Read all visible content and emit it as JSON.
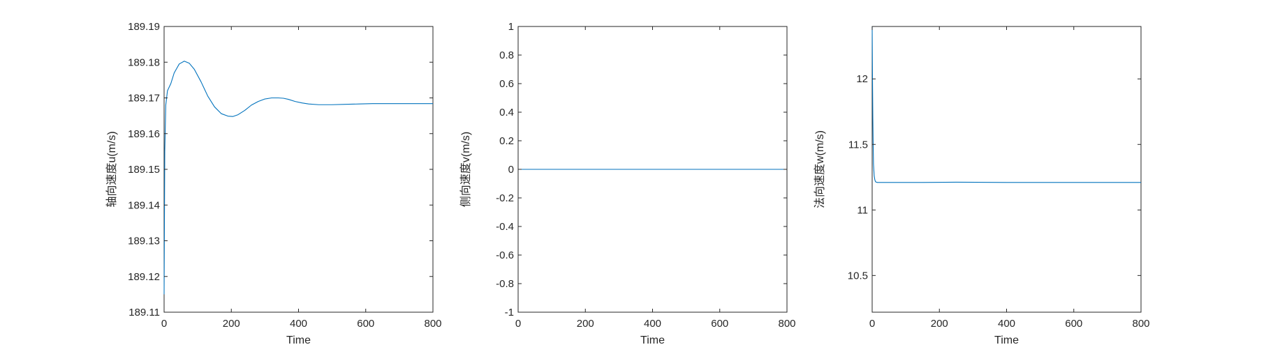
{
  "figure": {
    "background": "#ffffff",
    "axis_color": "#262626",
    "line_color": "#0072bd"
  },
  "chart_data": [
    {
      "type": "line",
      "title": "",
      "xlabel": "Time",
      "ylabel": "轴向速度u(m/s)",
      "xlim": [
        0,
        800
      ],
      "ylim": [
        189.11,
        189.19
      ],
      "xticks": [
        0,
        200,
        400,
        600,
        800
      ],
      "yticks": [
        189.11,
        189.12,
        189.13,
        189.14,
        189.15,
        189.16,
        189.17,
        189.18,
        189.19
      ],
      "ytick_labels": [
        "189.11",
        "189.12",
        "189.13",
        "189.14",
        "189.15",
        "189.16",
        "189.17",
        "189.18",
        "189.19"
      ],
      "grid": false,
      "series": [
        {
          "color": "#0072bd",
          "x": [
            0,
            2,
            5,
            10,
            20,
            30,
            45,
            60,
            75,
            90,
            110,
            130,
            150,
            170,
            190,
            205,
            220,
            240,
            260,
            280,
            300,
            320,
            340,
            355,
            370,
            390,
            410,
            430,
            460,
            500,
            540,
            580,
            620,
            660,
            700,
            740,
            780,
            800
          ],
          "y": [
            189.115,
            189.155,
            189.168,
            189.172,
            189.174,
            189.177,
            189.1795,
            189.1803,
            189.1797,
            189.178,
            189.1745,
            189.1705,
            189.1675,
            189.1656,
            189.1649,
            189.1648,
            189.1653,
            189.1665,
            189.168,
            189.169,
            189.1697,
            189.17,
            189.17,
            189.1699,
            189.1696,
            189.169,
            189.1686,
            189.1683,
            189.1681,
            189.1681,
            189.1682,
            189.1683,
            189.1684,
            189.1684,
            189.1684,
            189.1684,
            189.1684,
            189.1684
          ]
        }
      ]
    },
    {
      "type": "line",
      "title": "",
      "xlabel": "Time",
      "ylabel": "侧向速度v(m/s)",
      "xlim": [
        0,
        800
      ],
      "ylim": [
        -1,
        1
      ],
      "xticks": [
        0,
        200,
        400,
        600,
        800
      ],
      "yticks": [
        -1,
        -0.8,
        -0.6,
        -0.4,
        -0.2,
        0,
        0.2,
        0.4,
        0.6,
        0.8,
        1
      ],
      "ytick_labels": [
        "-1",
        "-0.8",
        "-0.6",
        "-0.4",
        "-0.2",
        "0",
        "0.2",
        "0.4",
        "0.6",
        "0.8",
        "1"
      ],
      "grid": false,
      "series": [
        {
          "color": "#0072bd",
          "x": [
            0,
            800
          ],
          "y": [
            0,
            0
          ]
        }
      ]
    },
    {
      "type": "line",
      "title": "",
      "xlabel": "Time",
      "ylabel": "法向速度w(m/s)",
      "xlim": [
        0,
        800
      ],
      "ylim": [
        10.22,
        12.4
      ],
      "xticks": [
        0,
        200,
        400,
        600,
        800
      ],
      "yticks": [
        10.5,
        11,
        11.5,
        12
      ],
      "ytick_labels": [
        "10.5",
        "11",
        "11.5",
        "12"
      ],
      "grid": false,
      "series": [
        {
          "color": "#0072bd",
          "x": [
            0,
            1,
            2,
            3,
            4,
            6,
            8,
            10,
            15,
            20,
            40,
            80,
            150,
            250,
            400,
            600,
            800
          ],
          "y": [
            12.4,
            12.0,
            11.7,
            11.5,
            11.35,
            11.26,
            11.23,
            11.215,
            11.21,
            11.21,
            11.21,
            11.21,
            11.21,
            11.212,
            11.21,
            11.21,
            11.21
          ]
        }
      ]
    }
  ]
}
